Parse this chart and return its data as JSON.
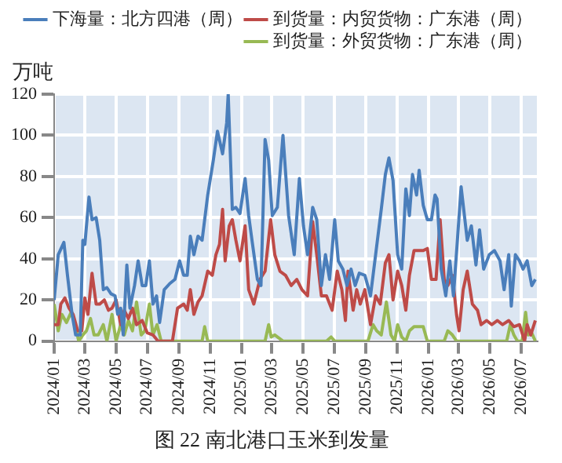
{
  "chart_data": {
    "type": "line",
    "title": "图 22 南北港口玉米到发量",
    "ylabel": "万吨",
    "xlim": [
      "2024-01-01",
      "2026-08-01"
    ],
    "xticks": [
      {
        "value": "2024-01",
        "label": "2024/01"
      },
      {
        "value": "2024-03",
        "label": "2024/03"
      },
      {
        "value": "2024-05",
        "label": "2024/05"
      },
      {
        "value": "2024-07",
        "label": "2024/07"
      },
      {
        "value": "2024-09",
        "label": "2024/09"
      },
      {
        "value": "2024-11",
        "label": "2024/11"
      },
      {
        "value": "2025-01",
        "label": "2025/01"
      },
      {
        "value": "2025-03",
        "label": "2025/03"
      },
      {
        "value": "2025-05",
        "label": "2025/05"
      },
      {
        "value": "2025-07",
        "label": "2025/07"
      },
      {
        "value": "2025-09",
        "label": "2025/09"
      },
      {
        "value": "2025-11",
        "label": "2025/11"
      },
      {
        "value": "2026-01",
        "label": "2026/01"
      },
      {
        "value": "2026-03",
        "label": "2026/03"
      },
      {
        "value": "2026-05",
        "label": "2026/05"
      },
      {
        "value": "2026-07",
        "label": "2026/07"
      }
    ],
    "ylim": [
      0,
      120
    ],
    "yticks": [
      0,
      20,
      40,
      60,
      80,
      100,
      120
    ],
    "grid": true,
    "legend": "top",
    "marker": "none",
    "line_style": "solid",
    "series": [
      {
        "name": "下海量：北方四港（周）",
        "color": "#4a7ebb",
        "x": [
          "2024-01-01",
          "2024-01-09",
          "2024-01-20",
          "2024-01-27",
          "2024-02-05",
          "2024-02-12",
          "2024-02-21",
          "2024-02-26",
          "2024-03-01",
          "2024-03-09",
          "2024-03-15",
          "2024-03-23",
          "2024-03-30",
          "2024-04-06",
          "2024-04-13",
          "2024-04-21",
          "2024-04-29",
          "2024-05-04",
          "2024-05-10",
          "2024-05-15",
          "2024-05-22",
          "2024-05-28",
          "2024-06-06",
          "2024-06-13",
          "2024-06-21",
          "2024-06-28",
          "2024-07-05",
          "2024-07-12",
          "2024-07-19",
          "2024-07-25",
          "2024-08-03",
          "2024-08-14",
          "2024-08-24",
          "2024-09-02",
          "2024-09-10",
          "2024-09-17",
          "2024-09-23",
          "2024-09-30",
          "2024-10-08",
          "2024-10-16",
          "2024-10-27",
          "2024-11-07",
          "2024-11-15",
          "2024-11-25",
          "2024-12-03",
          "2024-12-06",
          "2024-12-14",
          "2024-12-21",
          "2024-12-29",
          "2025-01-08",
          "2025-01-15",
          "2025-01-22",
          "2025-02-01",
          "2025-02-08",
          "2025-02-16",
          "2025-02-23",
          "2025-03-02",
          "2025-03-12",
          "2025-03-23",
          "2025-04-03",
          "2025-04-14",
          "2025-04-24",
          "2025-05-02",
          "2025-05-10",
          "2025-05-20",
          "2025-05-28",
          "2025-06-06",
          "2025-06-14",
          "2025-06-22",
          "2025-07-02",
          "2025-07-09",
          "2025-07-18",
          "2025-07-26",
          "2025-08-03",
          "2025-08-11",
          "2025-08-19",
          "2025-08-30",
          "2025-09-10",
          "2025-09-20",
          "2025-10-01",
          "2025-10-09",
          "2025-10-16",
          "2025-10-24",
          "2025-11-02",
          "2025-11-10",
          "2025-11-18",
          "2025-11-25",
          "2025-12-01",
          "2025-12-09",
          "2025-12-14",
          "2025-12-22",
          "2025-12-30",
          "2026-01-07",
          "2026-01-14",
          "2026-01-18",
          "2026-01-26",
          "2026-02-04",
          "2026-02-12",
          "2026-02-19",
          "2026-02-27",
          "2026-03-06",
          "2026-03-18",
          "2026-03-26",
          "2026-04-04",
          "2026-04-11",
          "2026-04-19",
          "2026-04-30",
          "2026-05-10",
          "2026-05-21",
          "2026-05-29",
          "2026-06-07",
          "2026-06-12",
          "2026-06-20",
          "2026-06-28",
          "2026-07-05",
          "2026-07-13",
          "2026-07-22",
          "2026-07-29"
        ],
        "values": [
          20,
          42,
          48,
          32,
          13,
          3,
          3,
          49,
          47,
          70,
          59,
          60,
          49,
          25,
          26,
          23,
          22,
          13,
          16,
          3,
          37,
          16,
          27,
          39,
          27,
          27,
          39,
          18,
          22,
          9,
          25,
          28,
          30,
          39,
          32,
          32,
          51,
          42,
          51,
          49,
          71,
          88,
          102,
          91,
          106,
          120,
          64,
          65,
          62,
          79,
          61,
          48,
          30,
          27,
          98,
          88,
          61,
          65,
          100,
          61,
          42,
          79,
          56,
          42,
          65,
          59,
          27,
          42,
          30,
          59,
          39,
          35,
          27,
          35,
          27,
          33,
          32,
          22,
          42,
          64,
          81,
          89,
          78,
          42,
          35,
          74,
          61,
          81,
          71,
          83,
          66,
          59,
          59,
          71,
          69,
          35,
          22,
          39,
          22,
          50,
          75,
          49,
          56,
          37,
          54,
          35,
          42,
          44,
          39,
          25,
          42,
          17,
          42,
          39,
          35,
          39,
          27,
          30
        ]
      },
      {
        "name": "到货量：内贸货物：广东港（周）",
        "color": "#be4b48",
        "x": [
          "2024-01-01",
          "2024-01-09",
          "2024-01-14",
          "2024-01-22",
          "2024-01-30",
          "2024-02-07",
          "2024-02-16",
          "2024-02-24",
          "2024-03-01",
          "2024-03-07",
          "2024-03-15",
          "2024-03-23",
          "2024-03-30",
          "2024-04-08",
          "2024-04-16",
          "2024-04-23",
          "2024-05-01",
          "2024-05-10",
          "2024-05-17",
          "2024-05-25",
          "2024-06-02",
          "2024-06-10",
          "2024-06-21",
          "2024-07-01",
          "2024-07-12",
          "2024-07-22",
          "2024-08-03",
          "2024-08-19",
          "2024-08-29",
          "2024-09-10",
          "2024-09-17",
          "2024-09-23",
          "2024-09-30",
          "2024-10-08",
          "2024-10-16",
          "2024-10-27",
          "2024-11-05",
          "2024-11-12",
          "2024-11-19",
          "2024-11-25",
          "2024-11-30",
          "2024-12-08",
          "2024-12-14",
          "2024-12-21",
          "2024-12-29",
          "2025-01-08",
          "2025-01-15",
          "2025-01-25",
          "2025-02-06",
          "2025-02-16",
          "2025-02-27",
          "2025-03-07",
          "2025-03-17",
          "2025-03-28",
          "2025-04-08",
          "2025-04-19",
          "2025-04-29",
          "2025-05-10",
          "2025-05-20",
          "2025-05-28",
          "2025-06-06",
          "2025-06-16",
          "2025-06-27",
          "2025-07-07",
          "2025-07-16",
          "2025-07-23",
          "2025-07-28",
          "2025-08-07",
          "2025-08-14",
          "2025-08-21",
          "2025-08-30",
          "2025-09-10",
          "2025-09-20",
          "2025-09-29",
          "2025-10-09",
          "2025-10-16",
          "2025-10-24",
          "2025-11-02",
          "2025-11-10",
          "2025-11-18",
          "2025-11-25",
          "2025-12-04",
          "2025-12-14",
          "2025-12-22",
          "2025-12-30",
          "2026-01-07",
          "2026-01-16",
          "2026-01-24",
          "2026-02-01",
          "2026-02-08",
          "2026-02-17",
          "2026-02-25",
          "2026-03-02",
          "2026-03-10",
          "2026-03-18",
          "2026-03-28",
          "2026-04-07",
          "2026-04-14",
          "2026-04-25",
          "2026-05-05",
          "2026-05-16",
          "2026-05-26",
          "2026-06-07",
          "2026-06-17",
          "2026-06-28",
          "2026-07-08",
          "2026-07-13",
          "2026-07-20",
          "2026-07-29"
        ],
        "values": [
          8,
          8,
          18,
          21,
          16,
          13,
          5,
          5,
          21,
          13,
          33,
          18,
          18,
          20,
          15,
          16,
          20,
          8,
          15,
          11,
          16,
          8,
          10,
          4,
          3,
          0,
          0,
          0,
          16,
          18,
          15,
          25,
          13,
          19,
          22,
          34,
          32,
          42,
          47,
          64,
          39,
          56,
          59,
          49,
          39,
          56,
          25,
          18,
          30,
          34,
          59,
          42,
          34,
          32,
          27,
          30,
          25,
          22,
          58,
          42,
          22,
          22,
          15,
          34,
          25,
          10,
          34,
          15,
          25,
          18,
          25,
          8,
          22,
          18,
          38,
          42,
          20,
          34,
          27,
          15,
          32,
          44,
          44,
          44,
          45,
          30,
          30,
          59,
          30,
          27,
          32,
          13,
          5,
          25,
          34,
          18,
          15,
          8,
          10,
          8,
          10,
          8,
          10,
          7,
          8,
          0,
          8,
          3,
          10
        ]
      },
      {
        "name": "到货量：外贸货物：广东港（周）",
        "color": "#98b954",
        "x": [
          "2024-01-01",
          "2024-01-09",
          "2024-01-16",
          "2024-01-25",
          "2024-02-03",
          "2024-02-10",
          "2024-02-18",
          "2024-02-26",
          "2024-03-04",
          "2024-03-12",
          "2024-03-19",
          "2024-03-27",
          "2024-04-06",
          "2024-04-13",
          "2024-04-23",
          "2024-05-01",
          "2024-05-10",
          "2024-05-17",
          "2024-05-25",
          "2024-06-02",
          "2024-06-10",
          "2024-06-19",
          "2024-06-26",
          "2024-07-05",
          "2024-07-12",
          "2024-07-20",
          "2024-07-28",
          "2024-08-08",
          "2024-10-16",
          "2024-10-21",
          "2024-10-27",
          "2025-02-16",
          "2025-02-23",
          "2025-02-28",
          "2025-03-07",
          "2025-03-23",
          "2025-06-16",
          "2025-06-25",
          "2025-07-02",
          "2025-09-05",
          "2025-09-15",
          "2025-09-22",
          "2025-10-01",
          "2025-10-11",
          "2025-10-20",
          "2025-10-27",
          "2025-11-02",
          "2025-11-10",
          "2025-11-18",
          "2025-11-25",
          "2025-12-04",
          "2025-12-14",
          "2025-12-22",
          "2025-12-30",
          "2026-02-01",
          "2026-02-08",
          "2026-02-17",
          "2026-02-25",
          "2026-06-03",
          "2026-06-10",
          "2026-06-17",
          "2026-06-24",
          "2026-07-03",
          "2026-07-10",
          "2026-07-15",
          "2026-07-20",
          "2026-07-29"
        ],
        "values": [
          18,
          5,
          13,
          9,
          14,
          9,
          0,
          3,
          5,
          11,
          3,
          3,
          8,
          0,
          13,
          0,
          8,
          3,
          10,
          5,
          19,
          3,
          5,
          18,
          3,
          8,
          0,
          0,
          0,
          7,
          0,
          0,
          8,
          2,
          3,
          0,
          0,
          2,
          0,
          0,
          8,
          5,
          3,
          19,
          3,
          0,
          8,
          2,
          0,
          5,
          7,
          7,
          7,
          0,
          0,
          5,
          3,
          0,
          0,
          8,
          3,
          0,
          0,
          14,
          3,
          5,
          0
        ]
      }
    ]
  }
}
